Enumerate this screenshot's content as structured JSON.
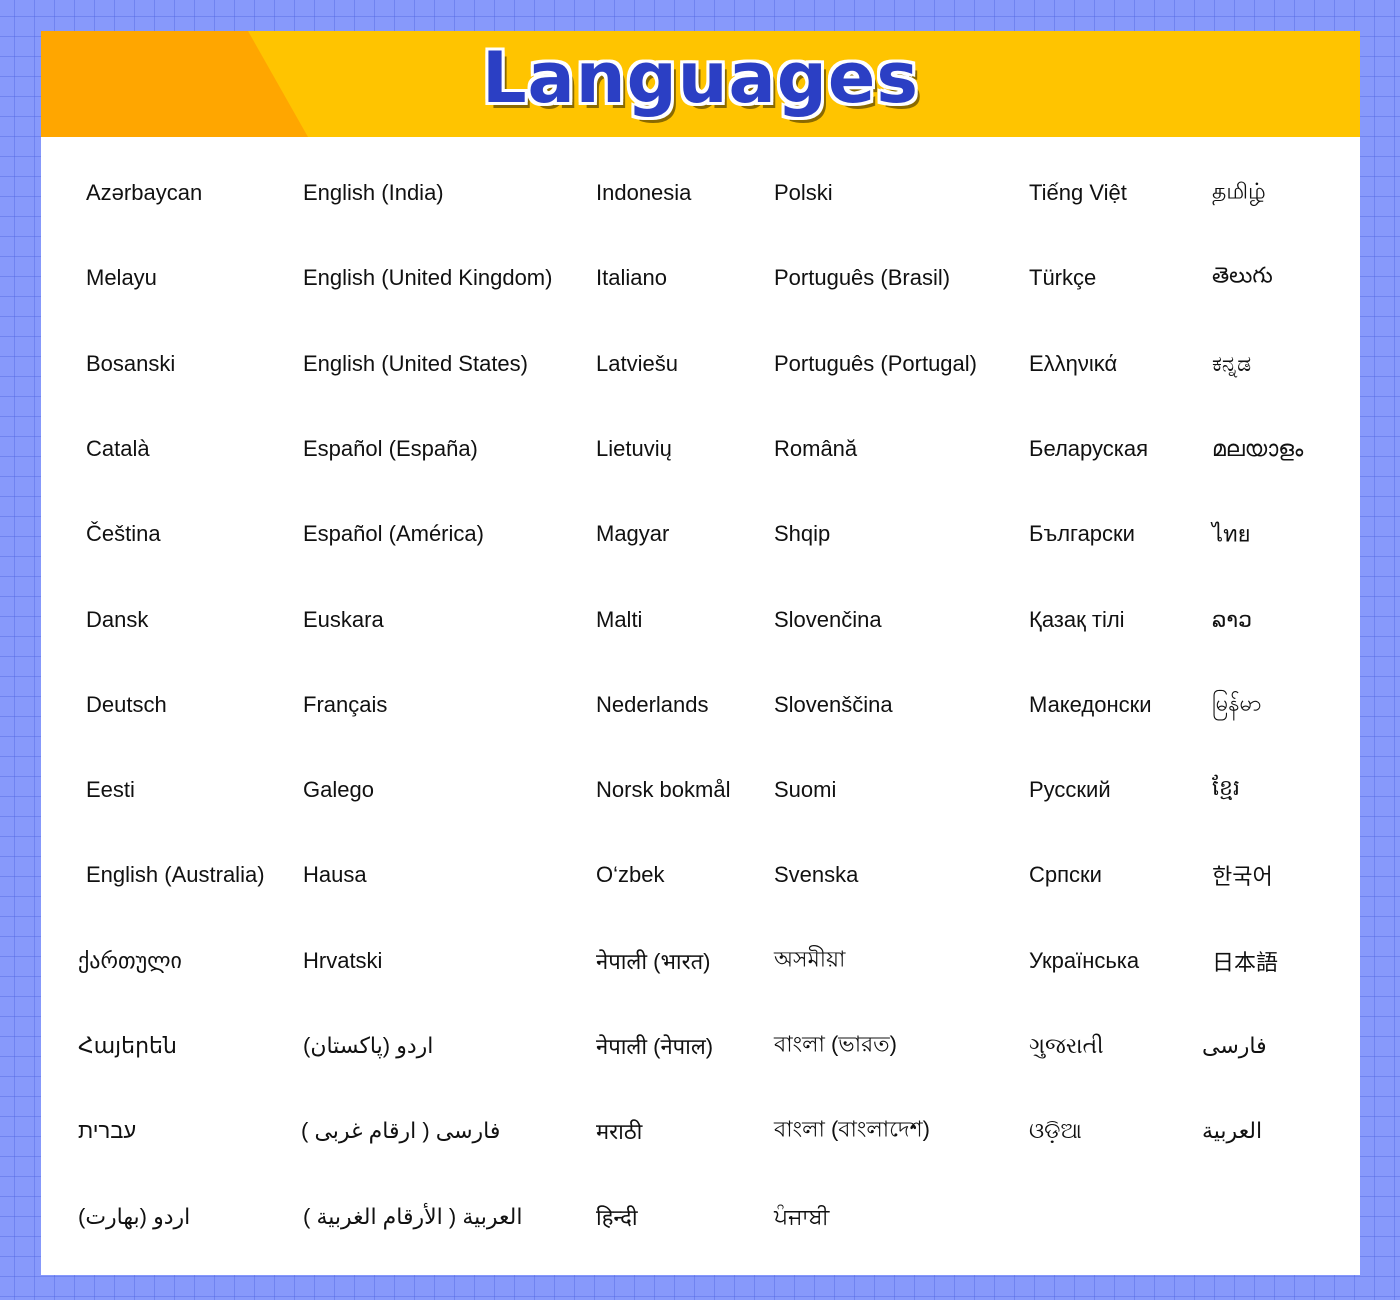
{
  "title": "Languages",
  "colors": {
    "background": "#8799fb",
    "header": "#ffc400",
    "header_accent": "#ffa600",
    "title": "#2b3fc4"
  },
  "columns": [
    [
      "Azərbaycan",
      "Melayu",
      "Bosanski",
      "Català",
      "Čeština",
      "Dansk",
      "Deutsch",
      "Eesti",
      "English (Australia)",
      "ქართული",
      "Հայերեն",
      "עברית",
      "اردو (بھارت)"
    ],
    [
      "English (India)",
      "English (United Kingdom)",
      "English (United States)",
      "Español (España)",
      "Español (América)",
      "Euskara",
      "Français",
      "Galego",
      "Hausa",
      "Hrvatski",
      "اردو (پاکستان)",
      "فارسی ( ارقام غربی )",
      "العربية ( الأرقام الغربية )"
    ],
    [
      "Indonesia",
      "Italiano",
      "Latviešu",
      "Lietuvių",
      "Magyar",
      "Malti",
      "Nederlands",
      "Norsk bokmål",
      "O‘zbek",
      "नेपाली (भारत)",
      "नेपाली (नेपाल)",
      "मराठी",
      "हिन्दी"
    ],
    [
      "Polski",
      "Português (Brasil)",
      "Português (Portugal)",
      "Română",
      "Shqip",
      "Slovenčina",
      "Slovenščina",
      "Suomi",
      "Svenska",
      "অসমীয়া",
      "বাংলা (ভারত)",
      "বাংলা (বাংলাদেশ)",
      "ਪੰਜਾਬੀ"
    ],
    [
      "Tiếng Việt",
      "Türkçe",
      "Ελληνικά",
      "Беларуская",
      "Български",
      "Қазақ тілі",
      "Македонски",
      "Русский",
      "Српски",
      "Українська",
      "ગુજરાતી",
      "ଓଡ଼ିଆ"
    ],
    [
      "தமிழ்",
      "తెలుగు",
      "ಕನ್ನಡ",
      "മലയാളം",
      "ไทย",
      "ລາວ",
      "မြန်မာ",
      "ខ្មែរ",
      "한국어",
      "日本語",
      "فارسی",
      "العربية"
    ]
  ]
}
